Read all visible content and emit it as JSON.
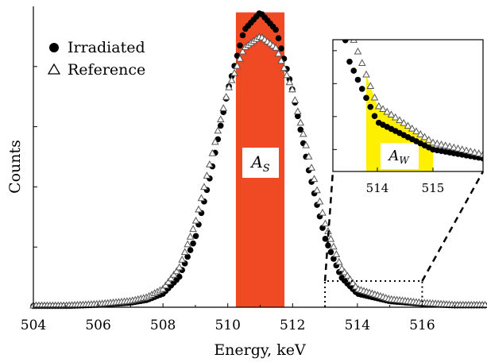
{
  "chart_data": {
    "type": "scatter",
    "xlabel": "Energy, keV",
    "ylabel": "Counts",
    "xlim": [
      504,
      518
    ],
    "ylim": [
      0,
      100
    ],
    "xticks": [
      504,
      506,
      508,
      510,
      512,
      514,
      516
    ],
    "xtick_labels": [
      "504",
      "506",
      "508",
      "510",
      "512",
      "514",
      "516"
    ],
    "yticks": [
      20,
      40,
      60,
      80
    ],
    "peak_center": 511.0,
    "legend": {
      "placement": "top-left",
      "entries": [
        {
          "label": "Irradiated",
          "marker": "filled-circle"
        },
        {
          "label": "Reference",
          "marker": "open-triangle"
        }
      ]
    },
    "series": [
      {
        "name": "Irradiated",
        "color": "#000000",
        "marker": "filled-circle",
        "x": [
          505.0,
          506.0,
          507.0,
          507.5,
          508.0,
          508.5,
          509.0,
          509.5,
          510.0,
          510.5,
          511.0,
          511.5,
          512.0,
          512.5,
          513.0,
          513.5,
          514.0,
          515.0,
          516.0,
          517.0
        ],
        "y": [
          0.4,
          0.8,
          1.5,
          2.4,
          4.5,
          10.0,
          23.0,
          45.5,
          72.0,
          92.0,
          98.0,
          92.0,
          72.0,
          45.5,
          23.0,
          10.0,
          4.5,
          2.0,
          1.1,
          0.6
        ]
      },
      {
        "name": "Reference",
        "color": "#555555",
        "marker": "open-triangle",
        "x": [
          505.0,
          506.0,
          507.0,
          507.5,
          508.0,
          508.5,
          509.0,
          509.5,
          510.0,
          510.5,
          511.0,
          511.5,
          512.0,
          512.5,
          513.0,
          513.5,
          514.0,
          515.0,
          516.0,
          517.0
        ],
        "y": [
          0.5,
          1.0,
          2.0,
          3.2,
          6.0,
          13.0,
          28.0,
          50.0,
          72.0,
          86.0,
          90.0,
          86.0,
          72.0,
          50.0,
          28.0,
          13.0,
          6.0,
          2.6,
          1.4,
          0.7
        ]
      }
    ],
    "shaded_regions": [
      {
        "label": "A_S",
        "x_range": [
          510.25,
          511.75
        ],
        "color": "#f04a25"
      },
      {
        "label": "A_W",
        "x_range": [
          513.8,
          515.0
        ],
        "color": "#ffef00"
      }
    ],
    "inset": {
      "xlim": [
        513.2,
        515.9
      ],
      "xticks": [
        514,
        515
      ],
      "xtick_labels": [
        "514",
        "515"
      ],
      "ylim": [
        0,
        12
      ],
      "source_range": [
        513.0,
        516.0
      ],
      "label": "A_W"
    }
  }
}
